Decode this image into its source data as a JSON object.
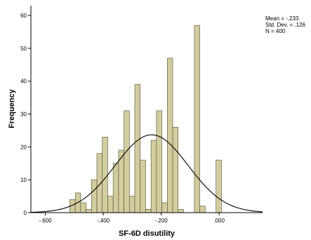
{
  "chart_data": {
    "type": "bar",
    "subtype": "histogram",
    "title": "",
    "xlabel": "SF-6D disutility",
    "ylabel": "Frequency",
    "xlim": [
      -0.65,
      0.15
    ],
    "ylim": [
      0,
      63
    ],
    "x_ticks": [
      -0.6,
      -0.4,
      -0.2,
      0.0
    ],
    "x_tick_labels": [
      "-.600",
      "-.400",
      "-.200",
      ".000"
    ],
    "y_ticks": [
      0,
      10,
      20,
      30,
      40,
      50,
      60
    ],
    "y_tick_labels": [
      "0",
      "10",
      "20",
      "30",
      "40",
      "50",
      "60"
    ],
    "bin_width": 0.0187,
    "bins": [
      {
        "x0": -0.5156,
        "x1": -0.4969,
        "count": 4
      },
      {
        "x0": -0.4969,
        "x1": -0.4782,
        "count": 6
      },
      {
        "x0": -0.4782,
        "x1": -0.4595,
        "count": 3
      },
      {
        "x0": -0.4595,
        "x1": -0.4408,
        "count": 1
      },
      {
        "x0": -0.4408,
        "x1": -0.4221,
        "count": 10
      },
      {
        "x0": -0.4221,
        "x1": -0.4034,
        "count": 18
      },
      {
        "x0": -0.4034,
        "x1": -0.3847,
        "count": 23
      },
      {
        "x0": -0.3847,
        "x1": -0.366,
        "count": 5
      },
      {
        "x0": -0.366,
        "x1": -0.3473,
        "count": 15
      },
      {
        "x0": -0.3473,
        "x1": -0.3286,
        "count": 19
      },
      {
        "x0": -0.3286,
        "x1": -0.3099,
        "count": 31
      },
      {
        "x0": -0.3099,
        "x1": -0.2912,
        "count": 5
      },
      {
        "x0": -0.2912,
        "x1": -0.2725,
        "count": 39
      },
      {
        "x0": -0.2725,
        "x1": -0.2538,
        "count": 16
      },
      {
        "x0": -0.2538,
        "x1": -0.2351,
        "count": 1
      },
      {
        "x0": -0.2351,
        "x1": -0.2164,
        "count": 22
      },
      {
        "x0": -0.2164,
        "x1": -0.1977,
        "count": 31
      },
      {
        "x0": -0.1977,
        "x1": -0.179,
        "count": 3
      },
      {
        "x0": -0.179,
        "x1": -0.1603,
        "count": 47
      },
      {
        "x0": -0.1603,
        "x1": -0.1416,
        "count": 26
      },
      {
        "x0": -0.1416,
        "x1": -0.1229,
        "count": 1
      },
      {
        "x0": -0.0855,
        "x1": -0.0668,
        "count": 57
      },
      {
        "x0": -0.0668,
        "x1": -0.0481,
        "count": 2
      },
      {
        "x0": -0.0107,
        "x1": 0.008,
        "count": 16
      }
    ],
    "normal_curve": {
      "mean": -0.233,
      "std": 0.126,
      "n": 400
    },
    "stats_labels": [
      "Mean = -.233",
      "Std. Dev. = .126",
      "N = 400"
    ],
    "legend_position": "top-right",
    "grid": false
  },
  "colors": {
    "bar_fill": "#d2cd9f",
    "bar_stroke": "#4d4a33",
    "curve": "#000000",
    "axis": "#000000"
  }
}
